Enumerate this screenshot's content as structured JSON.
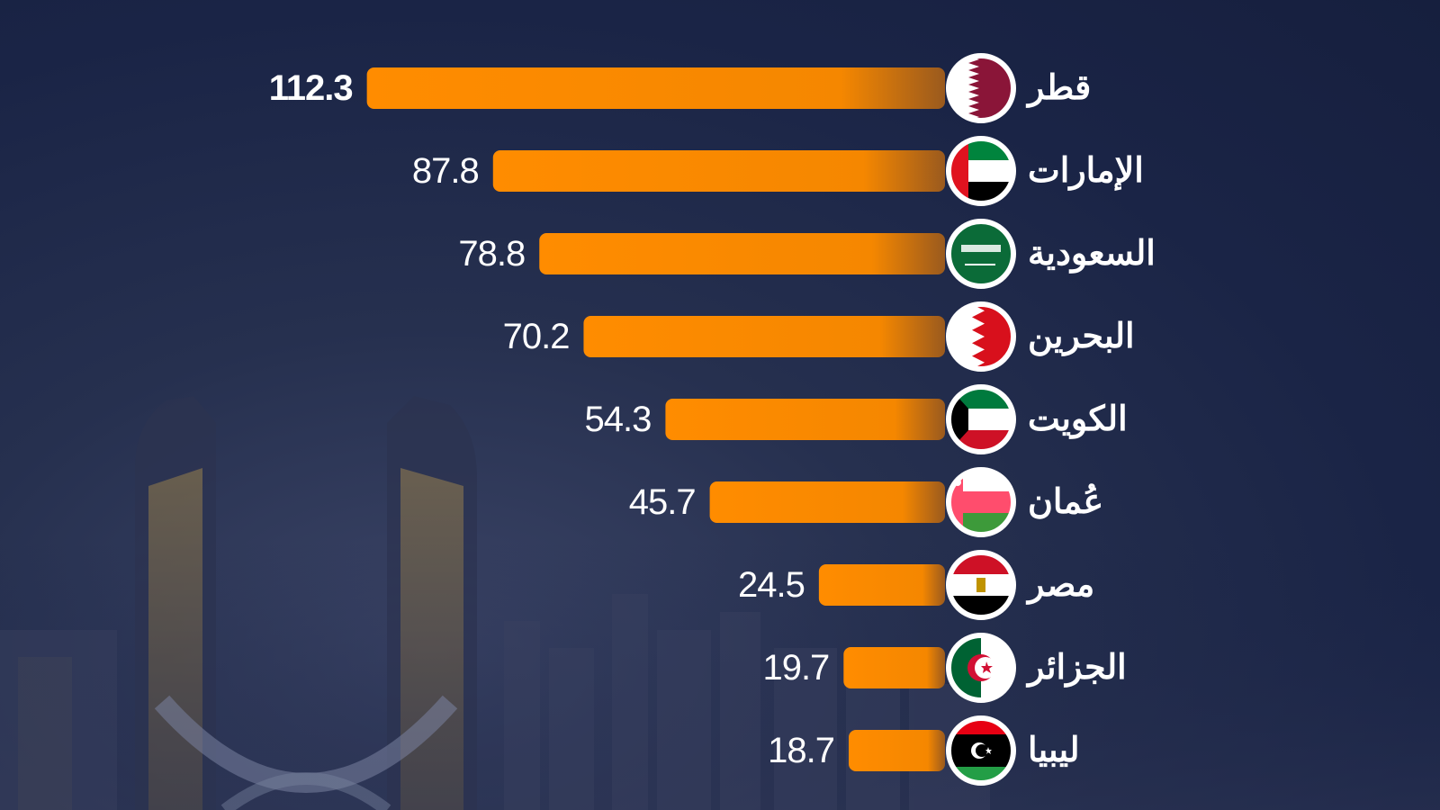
{
  "chart_data": {
    "type": "bar",
    "orientation": "horizontal",
    "categories": [
      "قطر",
      "الإمارات",
      "السعودية",
      "البحرين",
      "الكويت",
      "عُمان",
      "مصر",
      "الجزائر",
      "ليبيا"
    ],
    "values": [
      112.3,
      87.8,
      78.8,
      70.2,
      54.3,
      45.7,
      24.5,
      19.7,
      18.7
    ],
    "value_labels": [
      "112.3",
      "87.8",
      "78.8",
      "70.2",
      "54.3",
      "45.7",
      "24.5",
      "19.7",
      "18.7"
    ],
    "flags": [
      "qatar-flag-icon",
      "uae-flag-icon",
      "saudi-flag-icon",
      "bahrain-flag-icon",
      "kuwait-flag-icon",
      "oman-flag-icon",
      "egypt-flag-icon",
      "algeria-flag-icon",
      "libya-flag-icon"
    ],
    "bar_color": "#ff8c00",
    "grid": false,
    "legend": "none"
  }
}
